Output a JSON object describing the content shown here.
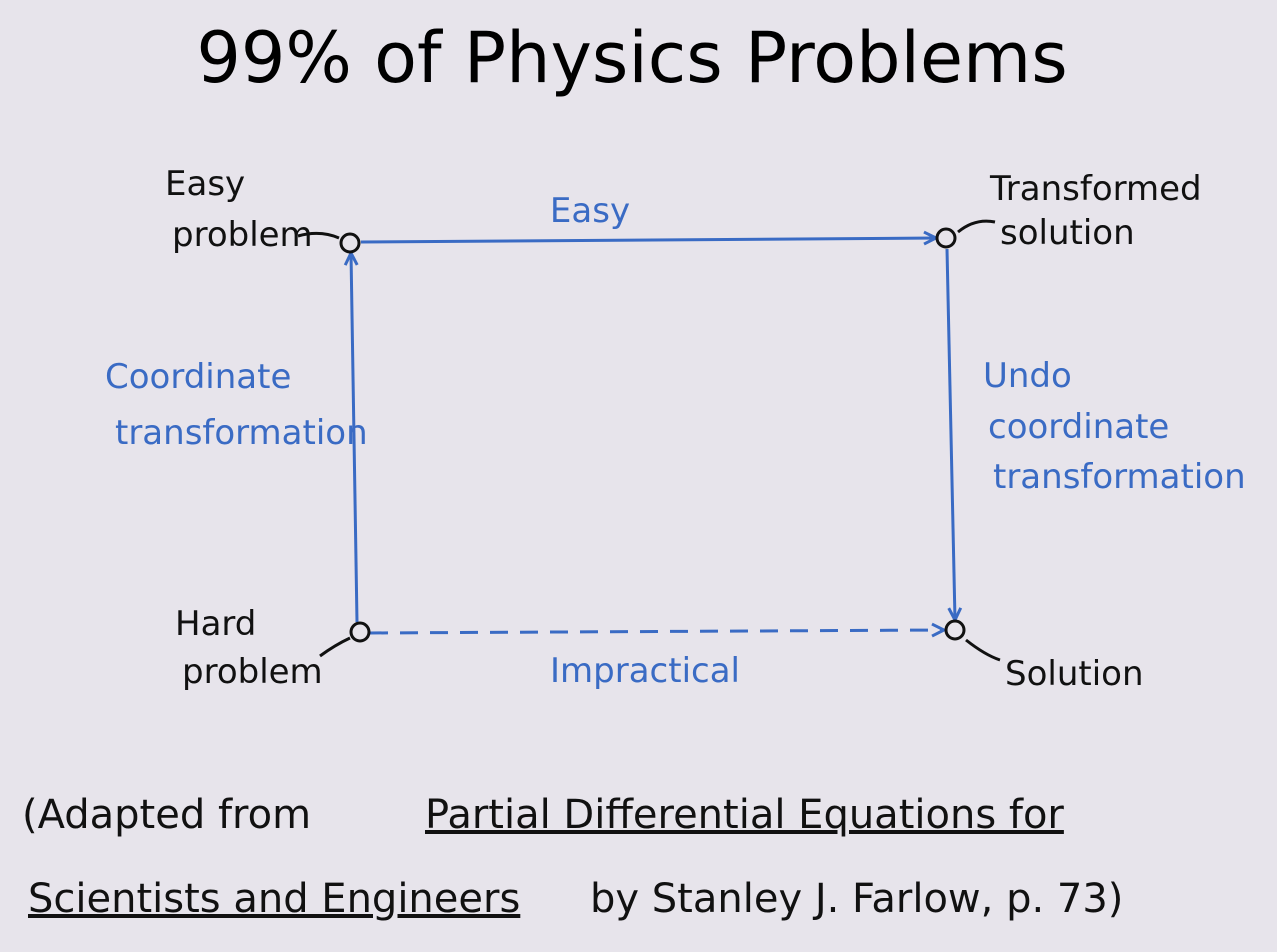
{
  "title": "99% of Physics Problems",
  "nodes": [
    {
      "id": "easy",
      "label": [
        "Easy",
        "problem"
      ]
    },
    {
      "id": "transformed",
      "label": [
        "Transformed",
        "solution"
      ]
    },
    {
      "id": "hard",
      "label": [
        "Hard",
        "problem"
      ]
    },
    {
      "id": "solution",
      "label": [
        "Solution"
      ]
    }
  ],
  "edges": [
    {
      "from": "easy",
      "to": "transformed",
      "label": [
        "Easy"
      ]
    },
    {
      "from": "hard",
      "to": "easy",
      "label": [
        "Coordinate",
        "transformation"
      ]
    },
    {
      "from": "transformed",
      "to": "solution",
      "label": [
        "Undo",
        "coordinate",
        "transformation"
      ]
    },
    {
      "from": "hard",
      "to": "solution",
      "label": [
        "Impractical"
      ]
    }
  ],
  "citation": {
    "prefix": "(Adapted from",
    "book": [
      "Partial Differential Equations for",
      "Scientists and Engineers"
    ],
    "suffix": "by Stanley J. Farlow, p. 73)"
  }
}
